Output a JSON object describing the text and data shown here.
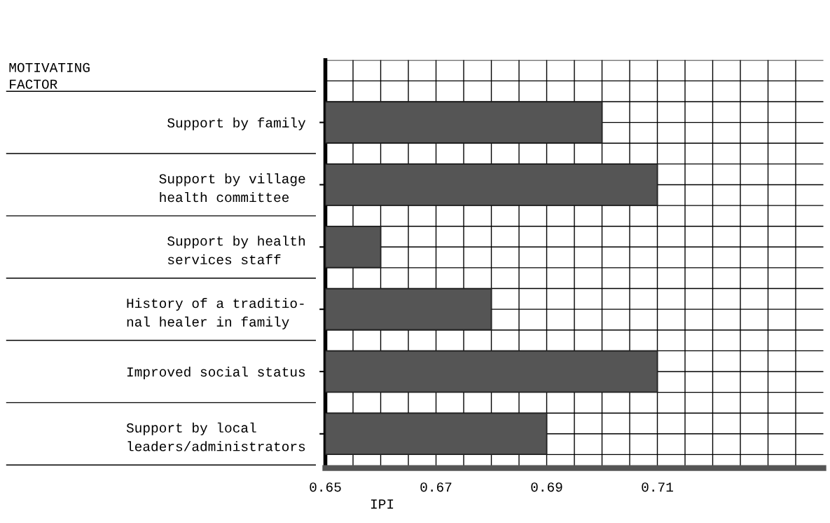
{
  "chart_data": {
    "type": "bar",
    "orientation": "horizontal",
    "annotations": [
      "MOTIVATING\nFACTOR"
    ],
    "xlabel": "IPI",
    "categories": [
      "Support by family",
      "Support by village\nhealth committee",
      "Support by health\nservices staff",
      "History of a traditio-\nnal healer in family",
      "Improved social status",
      "Support by local\nleaders/administrators"
    ],
    "values": [
      0.7,
      0.71,
      0.66,
      0.68,
      0.71,
      0.69
    ],
    "color": "#555555",
    "xlim": [
      0.65,
      0.74
    ],
    "xticks": [
      0.65,
      {
        "value": 0.655,
        "label": null
      },
      {
        "value": 0.66,
        "label": null
      },
      {
        "value": 0.665,
        "label": null
      },
      0.67,
      {
        "value": 0.675,
        "label": null
      },
      {
        "value": 0.68,
        "label": null
      },
      {
        "value": 0.685,
        "label": null
      },
      0.69,
      {
        "value": 0.695,
        "label": null
      },
      {
        "value": 0.7,
        "label": null
      },
      {
        "value": 0.705,
        "label": null
      },
      0.71,
      {
        "value": 0.715,
        "label": null
      },
      {
        "value": 0.72,
        "label": null
      },
      {
        "value": 0.725,
        "label": null
      },
      {
        "value": 0.73,
        "label": null
      },
      {
        "value": 0.735,
        "label": null
      }
    ],
    "grid": true
  }
}
